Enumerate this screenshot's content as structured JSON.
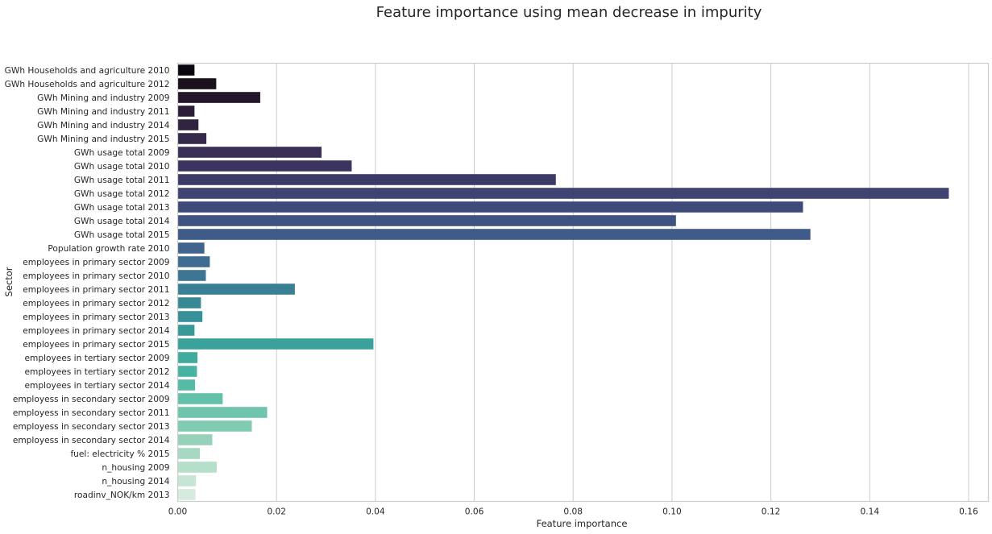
{
  "chart_data": {
    "type": "bar",
    "orientation": "horizontal",
    "title": "Feature importance using mean decrease in impurity",
    "xlabel": "Feature importance",
    "ylabel": "Sector",
    "xlim": [
      0,
      0.164
    ],
    "xticks": [
      0.0,
      0.02,
      0.04,
      0.06,
      0.08,
      0.1,
      0.12,
      0.14,
      0.16
    ],
    "xtick_labels": [
      "0.00",
      "0.02",
      "0.04",
      "0.06",
      "0.08",
      "0.10",
      "0.12",
      "0.14",
      "0.16"
    ],
    "grid": "vertical",
    "categories": [
      "GWh Households and agriculture 2010",
      "GWh Households and agriculture 2012",
      "GWh Mining and industry 2009",
      "GWh Mining and industry 2011",
      "GWh Mining and industry 2014",
      "GWh Mining and industry 2015",
      "GWh usage total 2009",
      "GWh usage total 2010",
      "GWh usage total 2011",
      "GWh usage total 2012",
      "GWh usage total 2013",
      "GWh usage total 2014",
      "GWh usage total 2015",
      "Population growth rate 2010",
      "employees in primary sector 2009",
      "employees in primary sector 2010",
      "employees in primary sector 2011",
      "employees in primary sector 2012",
      "employees in primary sector 2013",
      "employees in primary sector 2014",
      "employees in primary sector 2015",
      "employees in tertiary sector  2009",
      "employees in tertiary sector  2012",
      "employees in tertiary sector  2014",
      "employess in secondary sector 2009",
      "employess in secondary sector 2011",
      "employess in secondary sector 2013",
      "employess in secondary sector 2014",
      "fuel: electricity % 2015",
      "n_housing 2009",
      "n_housing 2014",
      "roadinv_NOK/km 2013"
    ],
    "values": [
      0.0034,
      0.0078,
      0.0167,
      0.0034,
      0.0042,
      0.0058,
      0.0291,
      0.0352,
      0.0765,
      0.156,
      0.1265,
      0.1008,
      0.128,
      0.0054,
      0.0065,
      0.0057,
      0.0237,
      0.0047,
      0.005,
      0.0034,
      0.0396,
      0.004,
      0.0039,
      0.0035,
      0.0091,
      0.0181,
      0.015,
      0.007,
      0.0045,
      0.0079,
      0.0037,
      0.0036
    ],
    "colors": [
      "#0b0710",
      "#1a111c",
      "#23162b",
      "#2b1d37",
      "#312441",
      "#352a4b",
      "#3a2f56",
      "#3c345f",
      "#3d3a68",
      "#3e4372",
      "#3e4a7a",
      "#3f5382",
      "#3f5b88",
      "#40648d",
      "#3f6d91",
      "#3d7693",
      "#3a8095",
      "#388996",
      "#389198",
      "#389999",
      "#3aa29b",
      "#3eab9c",
      "#48b3a0",
      "#55bba5",
      "#62c1a8",
      "#6fc5ac",
      "#81cbb2",
      "#96d1b9",
      "#a6d8c2",
      "#b6dfca",
      "#c6e5d4",
      "#d5ebdd"
    ]
  }
}
